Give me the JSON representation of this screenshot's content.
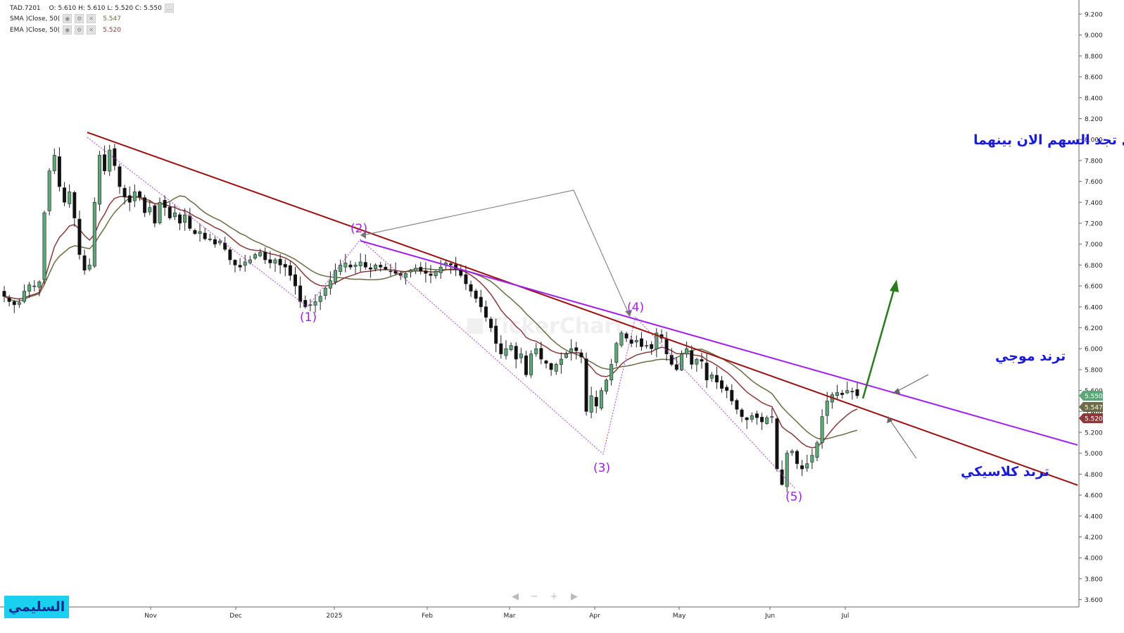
{
  "header": {
    "symbol": "TAD.7201",
    "ohlc": "O: 5.610  H: 5.610  L: 5.520  C: 5.550",
    "sma_label": "SMA  )Close, 50(",
    "sma_value": "5.547",
    "ema_label": "EMA  )Close, 50(",
    "ema_value": "5.520"
  },
  "colors": {
    "up": "#5ca777",
    "down": "#111111",
    "sma": "#6b6b45",
    "ema": "#8a3a3a",
    "classic_trend": "#9b1010",
    "wave_trend": "#a020f0",
    "wave_dotted": "#b040e0",
    "annotation_blue": "#1a1adb",
    "arrow_green": "#2b7a1e"
  },
  "annotations": {
    "title": "بدمج الترند الكلاسيكي بالترند الموجي تجد السهم الان بينهما",
    "wave_trend_label": "ترند موجي",
    "classic_trend_label": "ترند كلاسيكي",
    "waves": [
      "(1)",
      "(2)",
      "(3)",
      "(4)",
      "(5)"
    ],
    "watermark": "TickerChart",
    "author": "السليمي"
  },
  "chart_data": {
    "type": "candlestick",
    "ylim": [
      3.5,
      9.3
    ],
    "y_ticks": [
      "9.200",
      "9.000",
      "8.800",
      "8.600",
      "8.400",
      "8.200",
      "8.000",
      "7.800",
      "7.600",
      "7.400",
      "7.200",
      "7.000",
      "6.800",
      "6.600",
      "6.400",
      "6.200",
      "6.000",
      "5.800",
      "5.600",
      "5.400",
      "5.200",
      "5.000",
      "4.800",
      "4.600",
      "4.400",
      "4.200",
      "4.000",
      "3.800",
      "3.600"
    ],
    "x_labels": [
      "Nov",
      "Dec",
      "2025",
      "Feb",
      "Mar",
      "Apr",
      "May",
      "Jun",
      "Jul"
    ],
    "price_tags": [
      {
        "value": 5.55,
        "label": "5.550",
        "color": "#5ca777"
      },
      {
        "value": 5.547,
        "label": "5.547",
        "color": "#6b6b45"
      },
      {
        "value": 5.52,
        "label": "5.520",
        "color": "#8a3a3a"
      }
    ],
    "closes": [
      6.5,
      6.45,
      6.42,
      6.44,
      6.55,
      6.61,
      6.6,
      6.64,
      7.3,
      7.7,
      7.85,
      7.55,
      7.4,
      7.5,
      7.25,
      6.9,
      6.75,
      6.8,
      7.4,
      7.85,
      7.7,
      7.9,
      7.75,
      7.55,
      7.45,
      7.4,
      7.5,
      7.45,
      7.3,
      7.35,
      7.2,
      7.4,
      7.35,
      7.25,
      7.3,
      7.2,
      7.28,
      7.15,
      7.1,
      7.12,
      7.05,
      7.05,
      7.0,
      7.03,
      6.95,
      6.85,
      6.8,
      6.78,
      6.83,
      6.85,
      6.9,
      6.92,
      6.85,
      6.82,
      6.85,
      6.8,
      6.78,
      6.7,
      6.6,
      6.45,
      6.4,
      6.42,
      6.45,
      6.5,
      6.58,
      6.65,
      6.75,
      6.8,
      6.82,
      6.78,
      6.8,
      6.83,
      6.78,
      6.76,
      6.8,
      6.78,
      6.76,
      6.74,
      6.72,
      6.7,
      6.72,
      6.75,
      6.77,
      6.74,
      6.72,
      6.7,
      6.74,
      6.78,
      6.82,
      6.8,
      6.76,
      6.7,
      6.62,
      6.55,
      6.48,
      6.4,
      6.3,
      6.2,
      6.05,
      5.95,
      6.0,
      6.03,
      5.9,
      5.95,
      5.75,
      5.95,
      6.0,
      5.9,
      5.86,
      5.8,
      5.85,
      5.9,
      5.95,
      6.0,
      5.98,
      5.92,
      5.4,
      5.55,
      5.45,
      5.6,
      5.7,
      5.85,
      6.05,
      6.15,
      6.1,
      6.05,
      6.08,
      6.02,
      6.03,
      6.0,
      6.15,
      6.1,
      5.95,
      5.85,
      5.8,
      5.95,
      6.0,
      5.85,
      5.9,
      5.88,
      5.7,
      5.75,
      5.68,
      5.62,
      5.6,
      5.5,
      5.42,
      5.35,
      5.32,
      5.36,
      5.34,
      5.3,
      5.34,
      5.35,
      4.85,
      4.7,
      5.0,
      5.02,
      4.9,
      4.85,
      4.9,
      4.98,
      5.1,
      5.35,
      5.5,
      5.56,
      5.58,
      5.56,
      5.6,
      5.59,
      5.55
    ]
  }
}
